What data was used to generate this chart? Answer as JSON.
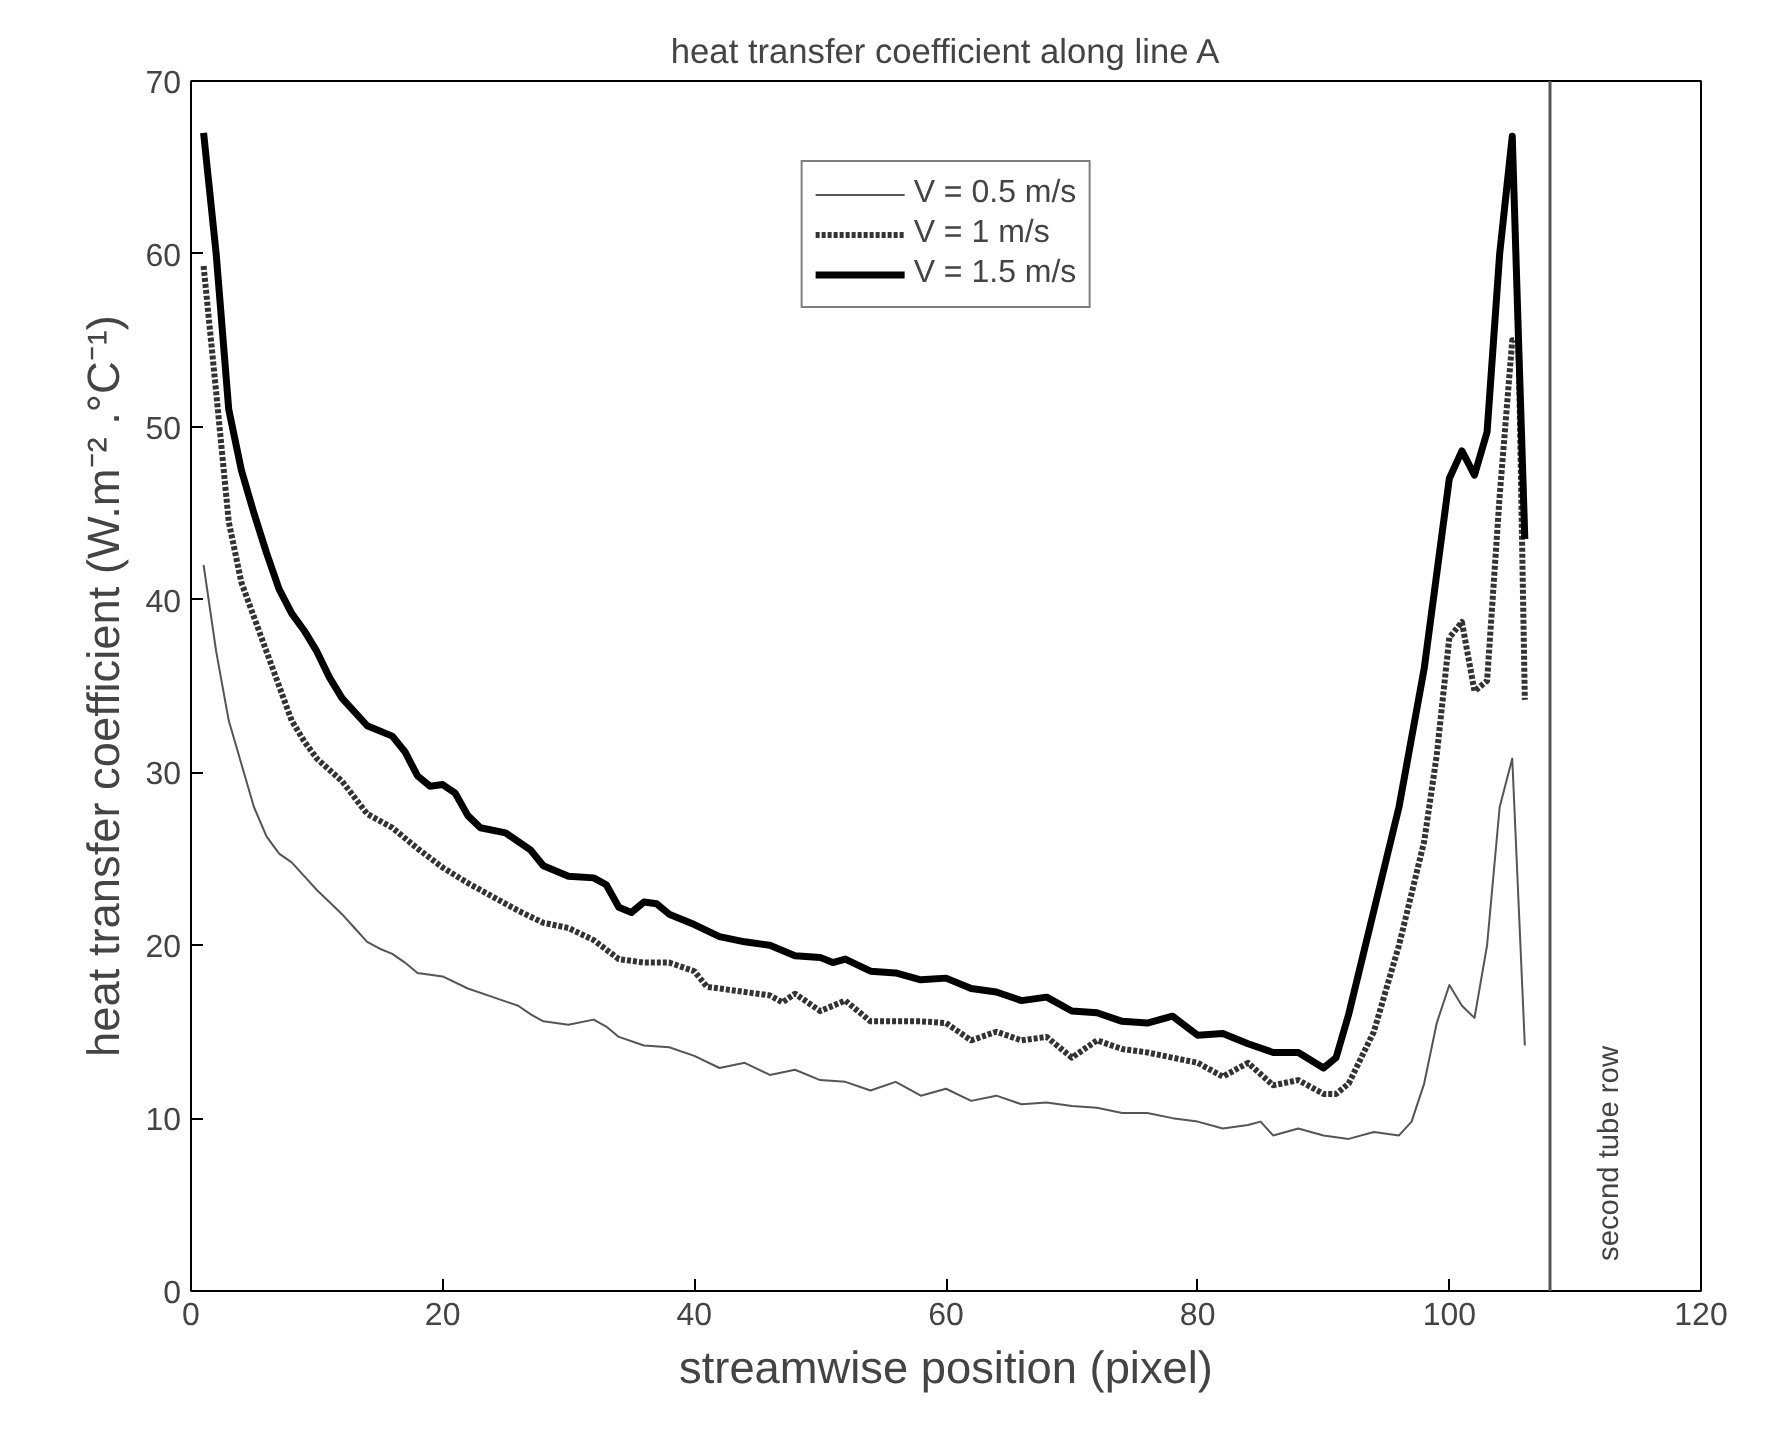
{
  "chart_data": {
    "type": "line",
    "title": "heat transfer coefficient along line A",
    "xlabel": "streamwise position (pixel)",
    "ylabel": "heat transfer coefficient (W.m⁻² .°C⁻¹)",
    "xlim": [
      0,
      120
    ],
    "ylim": [
      0,
      70
    ],
    "xticks": [
      0,
      20,
      40,
      60,
      80,
      100,
      120
    ],
    "yticks": [
      0,
      10,
      20,
      30,
      40,
      50,
      60,
      70
    ],
    "grid": false,
    "legend": "top",
    "marker": "none",
    "series": [
      {
        "name": "V = 0.5 m/s",
        "color": "#555555",
        "line_style": "solid",
        "x": [
          1,
          2,
          3,
          4,
          5,
          6,
          7,
          8,
          9,
          10,
          11,
          12,
          13,
          14,
          15,
          16,
          17,
          18,
          19,
          20,
          22,
          24,
          26,
          27,
          28,
          30,
          32,
          33,
          34,
          36,
          38,
          40,
          42,
          44,
          46,
          48,
          50,
          52,
          54,
          56,
          58,
          60,
          62,
          64,
          66,
          68,
          70,
          72,
          74,
          76,
          78,
          80,
          82,
          84,
          85,
          86,
          88,
          90,
          92,
          94,
          96,
          97,
          98,
          99,
          100,
          101,
          102,
          103,
          104,
          105,
          106
        ],
        "values": [
          42,
          37,
          33,
          30.5,
          28,
          26.3,
          25.3,
          24.8,
          24,
          23.2,
          22.5,
          21.8,
          21,
          20.2,
          19.8,
          19.5,
          19,
          18.4,
          18.3,
          18.2,
          17.5,
          17,
          16.5,
          16,
          15.6,
          15.4,
          15.7,
          15.3,
          14.7,
          14.2,
          14.1,
          13.6,
          12.9,
          13.2,
          12.5,
          12.8,
          12.2,
          12.1,
          11.6,
          12.1,
          11.3,
          11.7,
          11,
          11.3,
          10.8,
          10.9,
          10.7,
          10.6,
          10.3,
          10.3,
          10,
          9.8,
          9.4,
          9.6,
          9.8,
          9,
          9.4,
          9,
          8.8,
          9.2,
          9,
          9.8,
          12,
          15.5,
          17.7,
          16.5,
          15.8,
          20,
          28,
          30.8,
          14.2
        ]
      },
      {
        "name": "V = 1 m/s",
        "color": "#333333",
        "line_style": "dotted",
        "x": [
          1,
          2,
          3,
          4,
          5,
          6,
          7,
          8,
          9,
          10,
          12,
          14,
          16,
          18,
          20,
          22,
          24,
          26,
          28,
          30,
          32,
          34,
          36,
          38,
          40,
          41,
          44,
          46,
          47,
          48,
          50,
          52,
          54,
          56,
          58,
          60,
          62,
          64,
          66,
          68,
          70,
          72,
          74,
          76,
          78,
          80,
          82,
          84,
          86,
          88,
          90,
          91,
          92,
          94,
          96,
          98,
          99,
          100,
          101,
          102,
          103,
          104,
          105,
          105.5,
          106
        ],
        "values": [
          59.3,
          52,
          44.5,
          41,
          39,
          37,
          35,
          33,
          31.8,
          30.8,
          29.5,
          27.6,
          26.8,
          25.6,
          24.5,
          23.6,
          22.8,
          22,
          21.3,
          21,
          20.3,
          19.2,
          19,
          19,
          18.5,
          17.6,
          17.3,
          17.1,
          16.7,
          17.2,
          16.2,
          16.8,
          15.6,
          15.6,
          15.6,
          15.5,
          14.5,
          15,
          14.5,
          14.7,
          13.5,
          14.5,
          14,
          13.8,
          13.5,
          13.2,
          12.4,
          13.2,
          11.9,
          12.2,
          11.4,
          11.4,
          12,
          15,
          20,
          26,
          31,
          37.8,
          38.7,
          34.7,
          35.3,
          46,
          55,
          55,
          34.2
        ]
      },
      {
        "name": "V = 1.5 m/s",
        "color": "#000000",
        "line_style": "solid",
        "x": [
          1,
          2,
          3,
          4,
          5,
          6,
          7,
          8,
          9,
          10,
          11,
          12,
          14,
          16,
          17,
          18,
          19,
          20,
          21,
          22,
          23,
          25,
          27,
          28,
          30,
          32,
          33,
          34,
          35,
          36,
          37,
          38,
          40,
          42,
          44,
          46,
          48,
          50,
          51,
          52,
          54,
          56,
          58,
          60,
          62,
          64,
          66,
          68,
          70,
          72,
          74,
          76,
          78,
          80,
          82,
          84,
          86,
          88,
          90,
          91,
          92,
          94,
          96,
          98,
          100,
          101,
          102,
          103,
          104,
          105,
          105.5,
          106
        ],
        "values": [
          67,
          60,
          51,
          47.5,
          45,
          42.7,
          40.6,
          39.2,
          38.2,
          37,
          35.5,
          34.3,
          32.7,
          32.1,
          31.2,
          29.8,
          29.2,
          29.3,
          28.8,
          27.5,
          26.8,
          26.5,
          25.5,
          24.6,
          24,
          23.9,
          23.5,
          22.2,
          21.9,
          22.5,
          22.4,
          21.8,
          21.2,
          20.5,
          20.2,
          20,
          19.4,
          19.3,
          19,
          19.2,
          18.5,
          18.4,
          18,
          18.1,
          17.5,
          17.3,
          16.8,
          17,
          16.2,
          16.1,
          15.6,
          15.5,
          15.9,
          14.8,
          14.9,
          14.3,
          13.8,
          13.8,
          12.9,
          13.5,
          16,
          22,
          28,
          36,
          47,
          48.6,
          47.2,
          49.7,
          60,
          66.8,
          55,
          43.5
        ]
      }
    ],
    "ref_lines": [
      {
        "axis": "x",
        "value": 108,
        "label": "second tube row",
        "color": "#555555"
      }
    ]
  }
}
